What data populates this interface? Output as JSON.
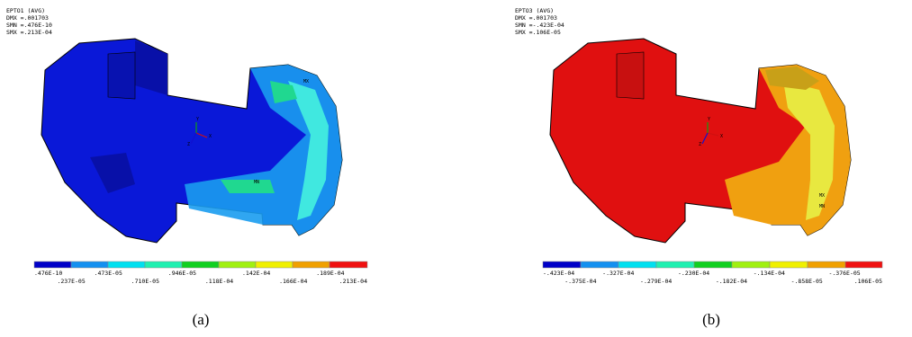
{
  "panels": [
    {
      "header": [
        "EPTO1    (AVG)",
        "DMX =.001703",
        "SMN =.476E-10",
        "SMX =.213E-04"
      ],
      "triad": [
        "Y",
        "Z",
        "X"
      ],
      "markers": [
        "MX",
        "MN"
      ],
      "legend_labels": [
        ".476E-10",
        ".237E-05",
        ".473E-05",
        ".710E-05",
        ".946E-05",
        ".118E-04",
        ".142E-04",
        ".166E-04",
        ".189E-04",
        ".213E-04"
      ],
      "caption": "(a)"
    },
    {
      "header": [
        "EPTO3    (AVG)",
        "DMX =.001703",
        "SMN =-.423E-04",
        "SMX =.106E-05"
      ],
      "triad": [
        "Y",
        "Z",
        "X"
      ],
      "markers": [
        "MX",
        "MN"
      ],
      "legend_labels": [
        "-.423E-04",
        "-.375E-04",
        "-.327E-04",
        "-.279E-04",
        "-.230E-04",
        "-.182E-04",
        "-.134E-04",
        "-.858E-05",
        "-.376E-05",
        ".106E-05"
      ],
      "caption": "(b)"
    }
  ]
}
